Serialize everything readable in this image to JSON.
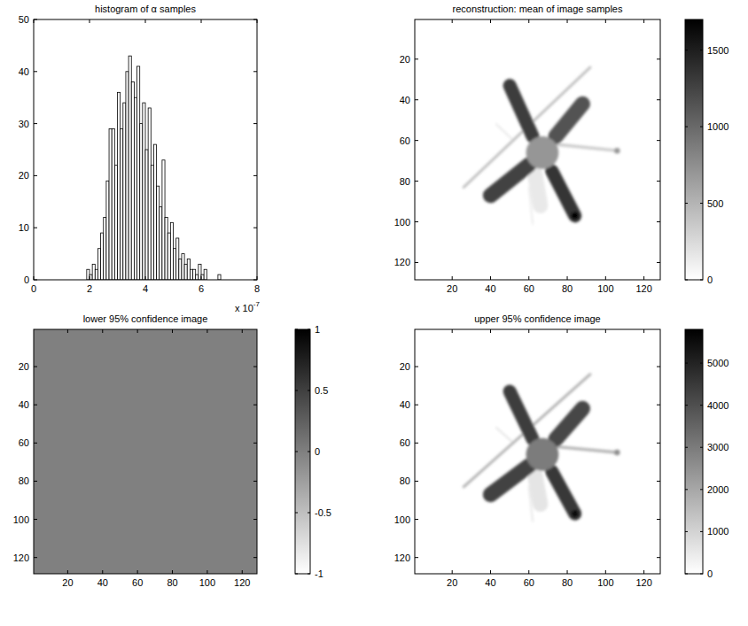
{
  "chart_data": [
    {
      "type": "histogram",
      "title": "histogram of α samples",
      "bins": [
        1.9,
        2,
        2.1,
        2.2,
        2.3,
        2.4,
        2.5,
        2.6,
        2.7,
        2.8,
        2.9,
        3,
        3.1,
        3.2,
        3.3,
        3.4,
        3.5,
        3.6,
        3.7,
        3.8,
        3.9,
        4,
        4.1,
        4.2,
        4.3,
        4.4,
        4.5,
        4.6,
        4.7,
        4.8,
        4.9,
        5,
        5.1,
        5.2,
        5.3,
        5.4,
        5.5,
        5.6,
        5.7,
        5.8,
        5.9,
        6,
        6.1,
        6.2,
        6.3,
        6.4,
        6.5,
        6.6,
        6.7
      ],
      "counts": [
        2,
        1,
        3,
        2,
        6,
        9,
        12,
        19,
        29,
        29,
        22,
        36,
        29,
        34,
        40,
        43,
        38,
        35,
        41,
        30,
        34,
        25,
        33,
        22,
        26,
        18,
        14,
        23,
        12,
        9,
        11,
        6,
        8,
        4,
        5,
        3,
        4,
        2,
        2,
        1,
        3,
        1,
        2,
        0,
        0,
        0,
        0,
        1
      ],
      "color": "#ffffff",
      "xlim": [
        0,
        8
      ],
      "ylim": [
        0,
        50
      ],
      "xticks": [
        0,
        2,
        4,
        6,
        8
      ],
      "yticks": [
        0,
        10,
        20,
        30,
        40,
        50
      ],
      "x_multiplier": {
        "text": "x 10",
        "power": "-7"
      }
    },
    {
      "type": "heatmap",
      "title": "reconstruction: mean of image samples",
      "xlim": [
        0.5,
        128.5
      ],
      "ylim": [
        128.5,
        0.5
      ],
      "xticks": [
        20,
        40,
        60,
        80,
        100,
        120
      ],
      "yticks": [
        20,
        40,
        60,
        80,
        100,
        120
      ],
      "background": 0,
      "shapes": [
        {
          "from": [
            63,
            76
          ],
          "to": [
            66,
            92
          ],
          "width": 8,
          "value": 150
        },
        {
          "from": [
            43,
            52
          ],
          "to": [
            52,
            60
          ],
          "width": 1,
          "value": 150
        },
        {
          "from": [
            60,
            83
          ],
          "to": [
            62,
            101
          ],
          "width": 1,
          "value": 120
        },
        {
          "from": [
            26,
            83
          ],
          "to": [
            92,
            24
          ],
          "width": 1.3,
          "value": 450
        },
        {
          "from": [
            75,
            62
          ],
          "to": [
            106,
            65
          ],
          "width": 1.6,
          "value": 350
        },
        {
          "from": [
            106,
            65
          ],
          "to": [
            106,
            65
          ],
          "width": 3,
          "value": 700
        },
        {
          "from": [
            50,
            33
          ],
          "to": [
            62,
            58
          ],
          "width": 7,
          "value": 1300
        },
        {
          "from": [
            72,
            75
          ],
          "to": [
            84,
            97
          ],
          "width": 7,
          "value": 1350
        },
        {
          "from": [
            88,
            42
          ],
          "to": [
            74,
            58
          ],
          "width": 8,
          "value": 1150
        },
        {
          "from": [
            40,
            87
          ],
          "to": [
            60,
            72
          ],
          "width": 8,
          "value": 1250
        },
        {
          "from": [
            67,
            66
          ],
          "to": [
            67,
            66
          ],
          "width": 17,
          "value": 700
        },
        {
          "from": [
            84,
            97
          ],
          "to": [
            84,
            97
          ],
          "width": 4,
          "value": 1700
        }
      ],
      "colorbar": {
        "lim": [
          0,
          1700
        ],
        "ticks": [
          0,
          500,
          1000,
          1500
        ]
      }
    },
    {
      "type": "heatmap",
      "title": "lower 95% confidence image",
      "xlim": [
        0.5,
        128.5
      ],
      "ylim": [
        128.5,
        0.5
      ],
      "xticks": [
        20,
        40,
        60,
        80,
        100,
        120
      ],
      "yticks": [
        20,
        40,
        60,
        80,
        100,
        120
      ],
      "background": 0,
      "shapes": [],
      "colorbar": {
        "lim": [
          -1,
          1
        ],
        "ticks": [
          -1,
          -0.5,
          0,
          0.5,
          1
        ]
      }
    },
    {
      "type": "heatmap",
      "title": "upper 95% confidence image",
      "xlim": [
        0.5,
        128.5
      ],
      "ylim": [
        128.5,
        0.5
      ],
      "xticks": [
        20,
        40,
        60,
        80,
        100,
        120
      ],
      "yticks": [
        20,
        40,
        60,
        80,
        100,
        120
      ],
      "background": 0,
      "shapes": [
        {
          "from": [
            63,
            76
          ],
          "to": [
            66,
            92
          ],
          "width": 8,
          "value": 600
        },
        {
          "from": [
            43,
            52
          ],
          "to": [
            52,
            60
          ],
          "width": 1,
          "value": 600
        },
        {
          "from": [
            60,
            83
          ],
          "to": [
            62,
            101
          ],
          "width": 1,
          "value": 500
        },
        {
          "from": [
            26,
            83
          ],
          "to": [
            92,
            24
          ],
          "width": 1.3,
          "value": 1800
        },
        {
          "from": [
            75,
            62
          ],
          "to": [
            106,
            65
          ],
          "width": 1.6,
          "value": 1700
        },
        {
          "from": [
            106,
            65
          ],
          "to": [
            106,
            65
          ],
          "width": 3,
          "value": 2600
        },
        {
          "from": [
            50,
            33
          ],
          "to": [
            62,
            58
          ],
          "width": 7,
          "value": 4400
        },
        {
          "from": [
            72,
            75
          ],
          "to": [
            84,
            97
          ],
          "width": 7,
          "value": 4500
        },
        {
          "from": [
            88,
            42
          ],
          "to": [
            74,
            58
          ],
          "width": 8,
          "value": 4200
        },
        {
          "from": [
            40,
            87
          ],
          "to": [
            60,
            72
          ],
          "width": 8,
          "value": 4300
        },
        {
          "from": [
            67,
            66
          ],
          "to": [
            67,
            66
          ],
          "width": 17,
          "value": 3000
        },
        {
          "from": [
            84,
            97
          ],
          "to": [
            84,
            97
          ],
          "width": 4,
          "value": 5500
        }
      ],
      "colorbar": {
        "lim": [
          0,
          5800
        ],
        "ticks": [
          0,
          1000,
          2000,
          3000,
          4000,
          5000
        ]
      }
    }
  ]
}
